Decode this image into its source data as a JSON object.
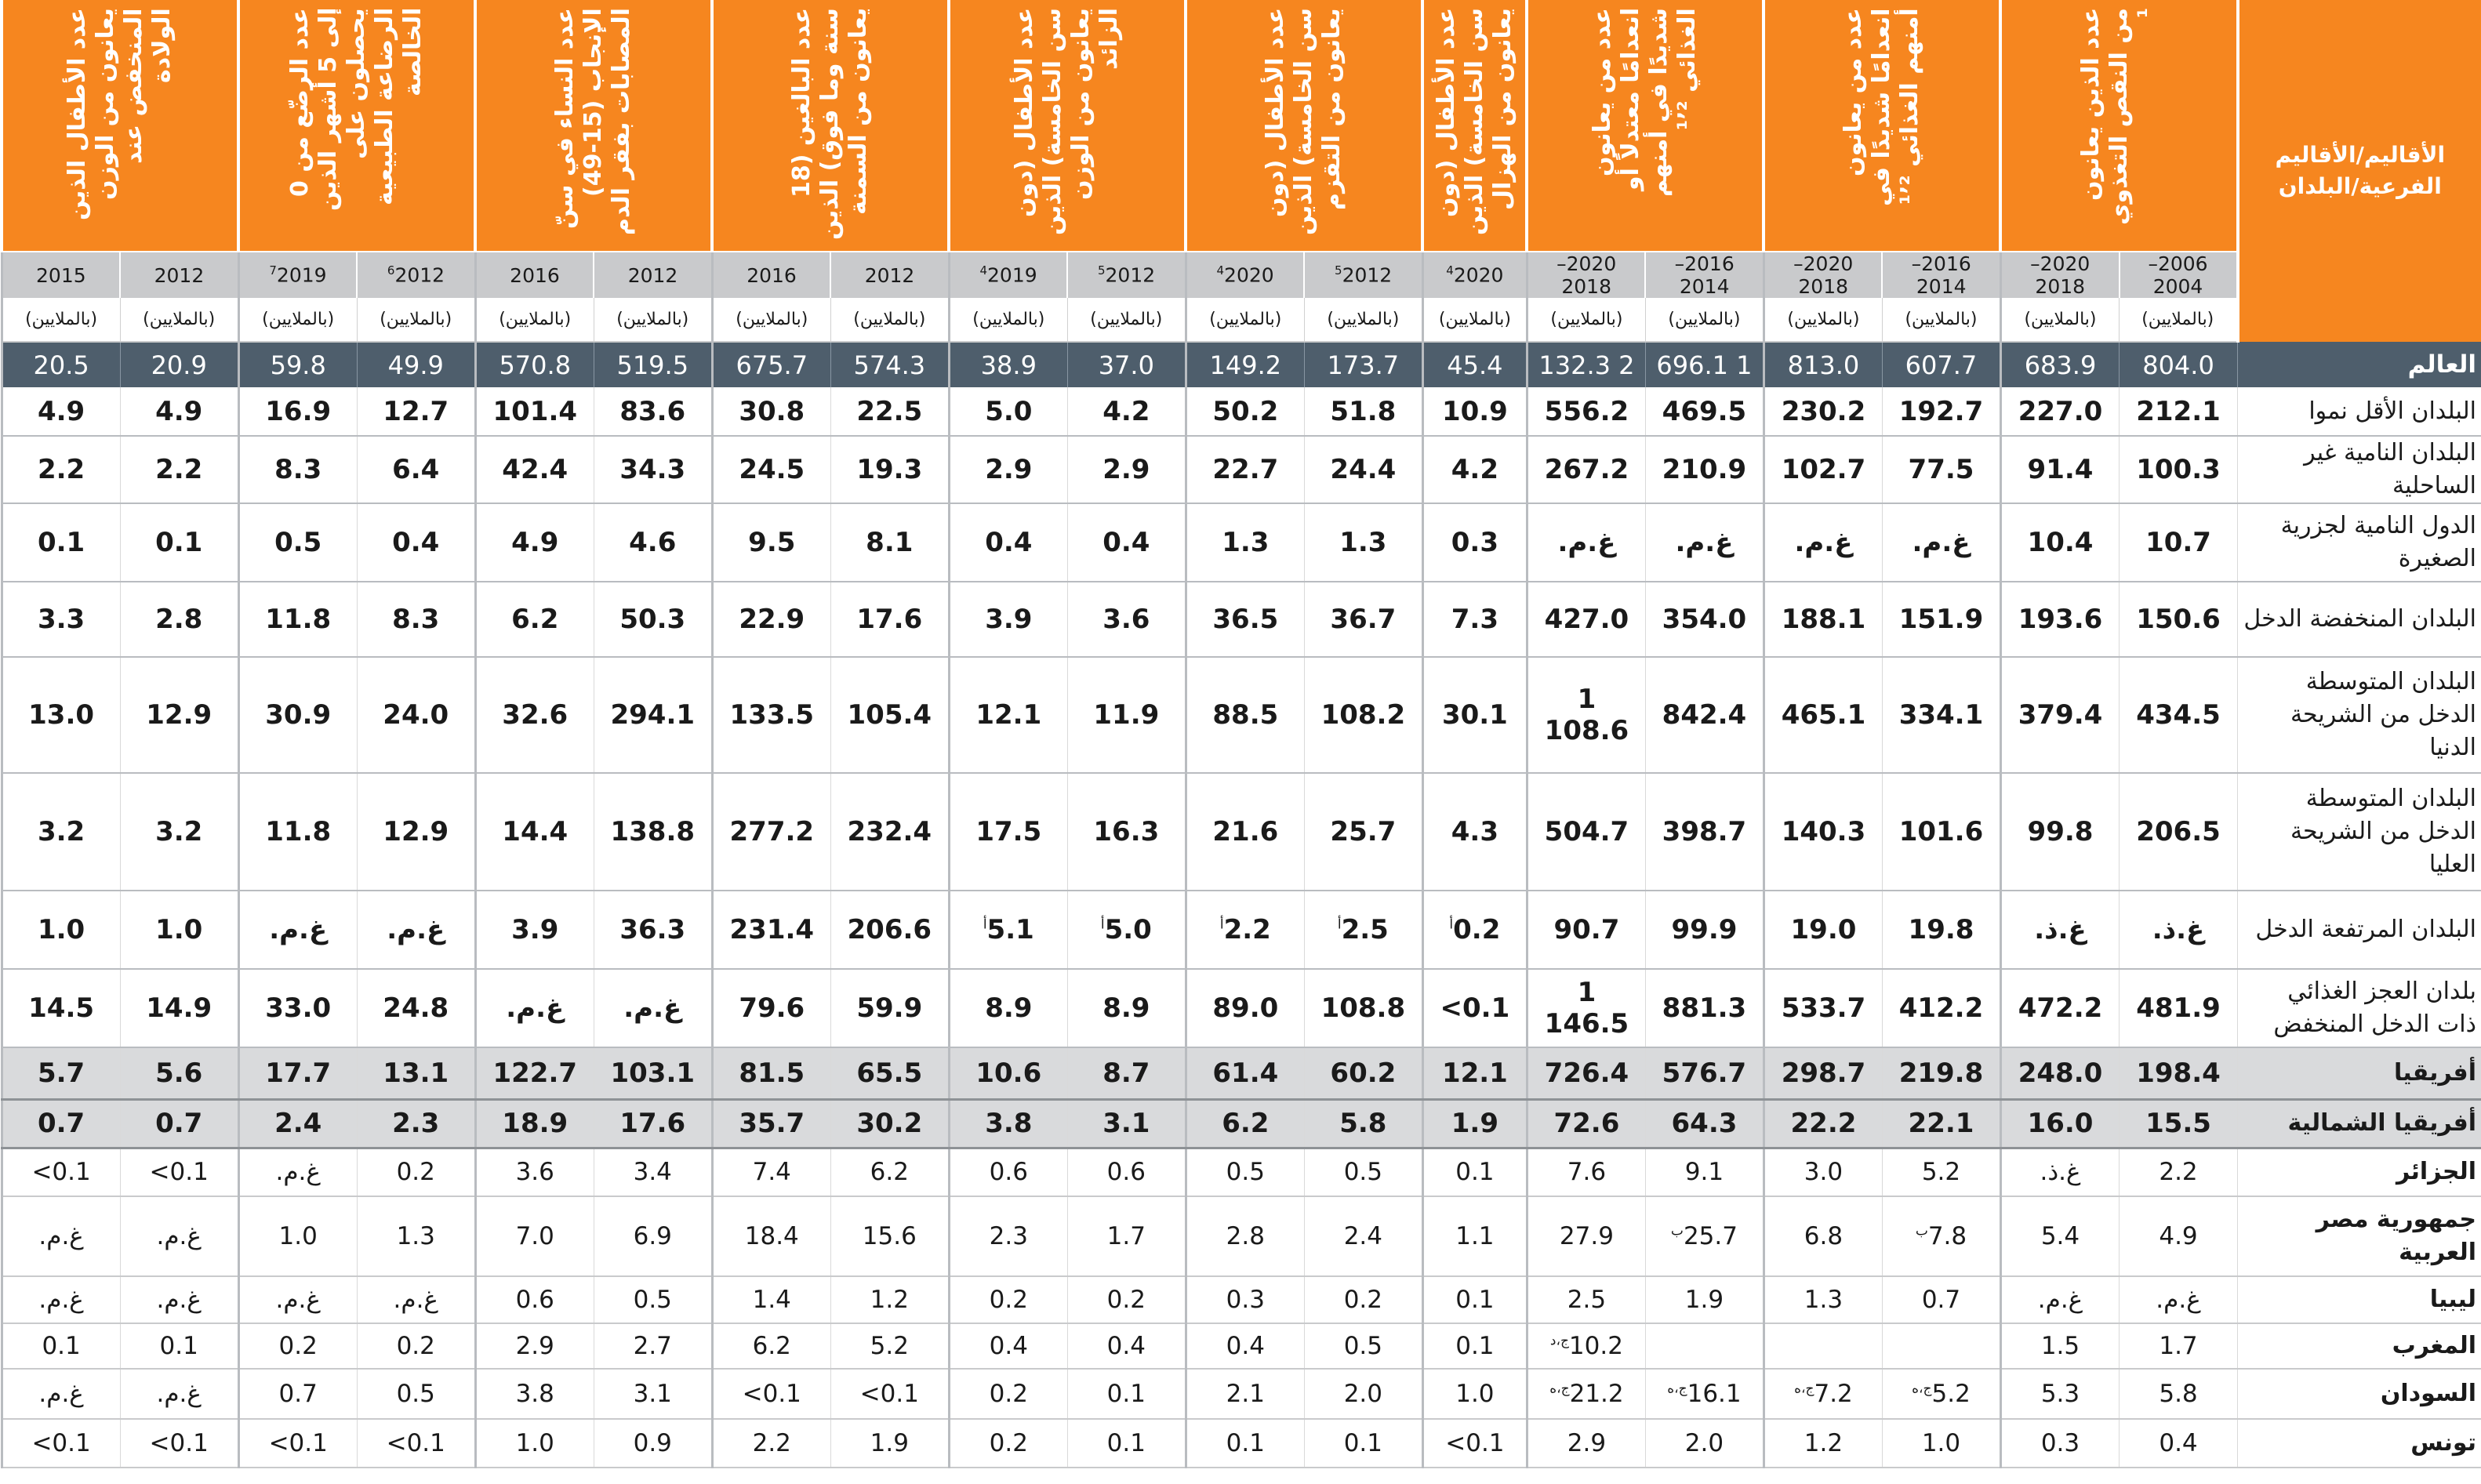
{
  "header": {
    "label": "الأقاليم/الأقاليم الفرعية/البلدان",
    "indicators": [
      "عدد الذين يعانون من النقص التغذوي ¹",
      "عدد من يعانون انعدامًا شديدًا في أمنهم الغذائي ¹٬²",
      "عدد من يعانون انعدامًا معتدلاً أو شديدًا في أمنهم الغذائي ¹٬²",
      "عدد الأطفال (دون سن الخامسة) الذين يعانون من الهزال",
      "عدد الأطفال (دون سن الخامسة) الذين يعانون من التقزم",
      "عدد الأطفال (دون سن الخامسة) الذين يعانون من الوزن الزائد",
      "عدد البالغين (18 سنة وما فوق) الذين يعانون من السمنة",
      "عدد النساء في سنّ الإنجاب (15-49) المصابات بفقر الدم",
      "عدد الرضّع من 0 إلى 5 أشهر الذين يحصلون على الرضاعة الطبيعية الخالصة",
      "عدد الأطفال الذين يعانون من الوزن المنخفض عند الولادة"
    ],
    "years": [
      "2006–2004",
      "2020–2018",
      "2016–2014",
      "2020–2018",
      "2016–2014",
      "2020–2018",
      "2020",
      "2012",
      "2020",
      "2012",
      "2019",
      "2012",
      "2016",
      "2012",
      "2016",
      "2012",
      "2019",
      "2012",
      "2015"
    ],
    "year_marks": [
      "",
      "",
      "",
      "",
      "",
      "",
      "4",
      "5",
      "4",
      "5",
      "4",
      "",
      "",
      "",
      "",
      "6",
      "7",
      "",
      ""
    ],
    "unit": "(بالملايين)"
  },
  "world": {
    "label": "العالم",
    "values": [
      "804.0",
      "683.9",
      "607.7",
      "813.0",
      "1 696.1",
      "2 132.3",
      "45.4",
      "173.7",
      "149.2",
      "37.0",
      "38.9",
      "574.3",
      "675.7",
      "519.5",
      "570.8",
      "49.9",
      "59.8",
      "20.9",
      "20.5"
    ]
  },
  "groups": [
    {
      "label": "البلدان الأقل نموا",
      "values": [
        "212.1",
        "227.0",
        "192.7",
        "230.2",
        "469.5",
        "556.2",
        "10.9",
        "51.8",
        "50.2",
        "4.2",
        "5.0",
        "22.5",
        "30.8",
        "83.6",
        "101.4",
        "12.7",
        "16.9",
        "4.9",
        "4.9"
      ]
    },
    {
      "label": "البلدان النامية غير الساحلية",
      "values": [
        "100.3",
        "91.4",
        "77.5",
        "102.7",
        "210.9",
        "267.2",
        "4.2",
        "24.4",
        "22.7",
        "2.9",
        "2.9",
        "19.3",
        "24.5",
        "34.3",
        "42.4",
        "6.4",
        "8.3",
        "2.2",
        "2.2"
      ]
    },
    {
      "label": "الدول النامية لجزرية الصغيرة",
      "values": [
        "10.7",
        "10.4",
        "غ.م.",
        "غ.م.",
        "غ.م.",
        "غ.م.",
        "0.3",
        "1.3",
        "1.3",
        "0.4",
        "0.4",
        "8.1",
        "9.5",
        "4.6",
        "4.9",
        "0.4",
        "0.5",
        "0.1",
        "0.1"
      ]
    },
    {
      "label": "البلدان المنخفضة الدخل",
      "values": [
        "150.6",
        "193.6",
        "151.9",
        "188.1",
        "354.0",
        "427.0",
        "7.3",
        "36.7",
        "36.5",
        "3.6",
        "3.9",
        "17.6",
        "22.9",
        "50.3",
        "6.2",
        "8.3",
        "11.8",
        "2.8",
        "3.3"
      ]
    },
    {
      "label": "البلدان المتوسطة الدخل من الشريحة الدنيا",
      "values": [
        "434.5",
        "379.4",
        "334.1",
        "465.1",
        "842.4",
        "1 108.6",
        "30.1",
        "108.2",
        "88.5",
        "11.9",
        "12.1",
        "105.4",
        "133.5",
        "294.1",
        "32.6",
        "24.0",
        "30.9",
        "12.9",
        "13.0"
      ]
    },
    {
      "label": "البلدان المتوسطة الدخل من الشريحة العليا",
      "values": [
        "206.5",
        "99.8",
        "101.6",
        "140.3",
        "398.7",
        "504.7",
        "4.3",
        "25.7",
        "21.6",
        "16.3",
        "17.5",
        "232.4",
        "277.2",
        "138.8",
        "14.4",
        "12.9",
        "11.8",
        "3.2",
        "3.2"
      ]
    },
    {
      "label": "البلدان المرتفعة الدخل",
      "values": [
        "غ.ذ.",
        "غ.ذ.",
        "19.8",
        "19.0",
        "99.9",
        "90.7",
        "0.2",
        "2.5",
        "2.2",
        "5.0",
        "5.1",
        "206.6",
        "231.4",
        "36.3",
        "3.9",
        "غ.م.",
        "غ.م.",
        "1.0",
        "1.0"
      ],
      "marks": [
        "",
        "",
        "",
        "",
        "",
        "",
        "أ",
        "أ",
        "أ",
        "أ",
        "أ",
        "",
        "",
        "",
        "",
        "",
        "",
        "",
        ""
      ]
    },
    {
      "label": "بلدان العجز الغذائي ذات الدخل المنخفض",
      "values": [
        "481.9",
        "472.2",
        "412.2",
        "533.7",
        "881.3",
        "1 146.5",
        "0.1>",
        "108.8",
        "89.0",
        "8.9",
        "8.9",
        "59.9",
        "79.6",
        "غ.م.",
        "غ.م.",
        "24.8",
        "33.0",
        "14.9",
        "14.5"
      ]
    }
  ],
  "regions": [
    {
      "label": "أفريقيا",
      "values": [
        "198.4",
        "248.0",
        "219.8",
        "298.7",
        "576.7",
        "726.4",
        "12.1",
        "60.2",
        "61.4",
        "8.7",
        "10.6",
        "65.5",
        "81.5",
        "103.1",
        "122.7",
        "13.1",
        "17.7",
        "5.6",
        "5.7"
      ]
    },
    {
      "label": "أفريقيا الشمالية",
      "values": [
        "15.5",
        "16.0",
        "22.1",
        "22.2",
        "64.3",
        "72.6",
        "1.9",
        "5.8",
        "6.2",
        "3.1",
        "3.8",
        "30.2",
        "35.7",
        "17.6",
        "18.9",
        "2.3",
        "2.4",
        "0.7",
        "0.7"
      ]
    }
  ],
  "countries": [
    {
      "label": "الجزائر",
      "values": [
        "2.2",
        "غ.ذ.",
        "5.2",
        "3.0",
        "9.1",
        "7.6",
        "0.1",
        "0.5",
        "0.5",
        "0.6",
        "0.6",
        "6.2",
        "7.4",
        "3.4",
        "3.6",
        "0.2",
        "غ.م.",
        "0.1>",
        "0.1>"
      ]
    },
    {
      "label": "جمهورية مصر العربية",
      "values": [
        "4.9",
        "5.4",
        "7.8",
        "6.8",
        "25.7",
        "27.9",
        "1.1",
        "2.4",
        "2.8",
        "1.7",
        "2.3",
        "15.6",
        "18.4",
        "6.9",
        "7.0",
        "1.3",
        "1.0",
        "غ.م.",
        "غ.م."
      ],
      "marks": [
        "",
        "",
        "ب",
        "",
        "ب",
        "",
        "",
        "",
        "",
        "",
        "",
        "",
        "",
        "",
        "",
        "",
        "",
        "",
        ""
      ]
    },
    {
      "label": "ليبيا",
      "values": [
        "غ.م.",
        "غ.م.",
        "0.7",
        "1.3",
        "1.9",
        "2.5",
        "0.1",
        "0.2",
        "0.3",
        "0.2",
        "0.2",
        "1.2",
        "1.4",
        "0.5",
        "0.6",
        "غ.م.",
        "غ.م.",
        "غ.م.",
        "غ.م."
      ]
    },
    {
      "label": "المغرب",
      "values": [
        "1.7",
        "1.5",
        "",
        "",
        "",
        "10.2",
        "0.1",
        "0.5",
        "0.4",
        "0.4",
        "0.4",
        "5.2",
        "6.2",
        "2.7",
        "2.9",
        "0.2",
        "0.2",
        "0.1",
        "0.1"
      ],
      "marks": [
        "",
        "",
        "",
        "",
        "",
        "ج،د",
        "",
        "",
        "",
        "",
        "",
        "",
        "",
        "",
        "",
        "",
        "",
        "",
        ""
      ]
    },
    {
      "label": "السودان",
      "values": [
        "5.8",
        "5.3",
        "5.2",
        "7.2",
        "16.1",
        "21.2",
        "1.0",
        "2.0",
        "2.1",
        "0.1",
        "0.2",
        "0.1>",
        "0.1>",
        "3.1",
        "3.8",
        "0.5",
        "0.7",
        "غ.م.",
        "غ.م."
      ],
      "marks": [
        "",
        "",
        "ج،ه",
        "ج،ه",
        "ج،ه",
        "ج،ه",
        "",
        "",
        "",
        "",
        "",
        "",
        "",
        "",
        "",
        "",
        "",
        "",
        ""
      ]
    },
    {
      "label": "تونس",
      "values": [
        "0.4",
        "0.3",
        "1.0",
        "1.2",
        "2.0",
        "2.9",
        "0.1>",
        "0.1",
        "0.1",
        "0.1",
        "0.2",
        "1.9",
        "2.2",
        "0.9",
        "1.0",
        "0.1>",
        "0.1>",
        "0.1>",
        "0.1>"
      ]
    }
  ]
}
